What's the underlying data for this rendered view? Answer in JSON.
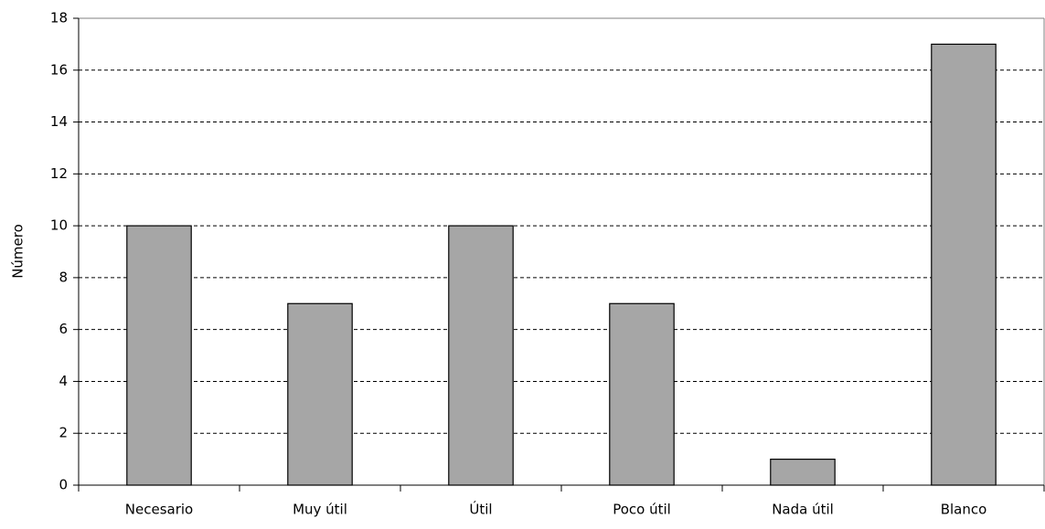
{
  "chart_data": {
    "type": "bar",
    "y_label": "Número",
    "categories": [
      "Necesario",
      "Muy útil",
      "Útil",
      "Poco útil",
      "Nada útil",
      "Blanco"
    ],
    "values": [
      10,
      7,
      10,
      7,
      1,
      17
    ],
    "color": "#a6a6a6",
    "ylim": [
      0,
      18
    ],
    "yticks": [
      0,
      2,
      4,
      6,
      8,
      10,
      12,
      14,
      16,
      18
    ],
    "grid": true
  }
}
